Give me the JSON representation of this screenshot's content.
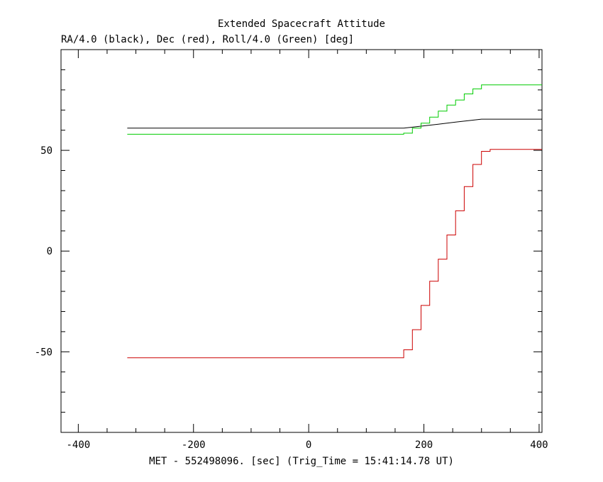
{
  "chart_data": {
    "type": "line",
    "title": "Extended Spacecraft Attitude",
    "subtitle": "RA/4.0 (black), Dec (red), Roll/4.0 (Green) [deg]",
    "xlabel": "MET - 552498096. [sec] (Trig_Time = 15:41:14.78 UT)",
    "ylabel": "",
    "xlim": [
      -430,
      405
    ],
    "ylim": [
      -90,
      100
    ],
    "x_tick_labels": [
      "-400",
      "-200",
      "0",
      "200",
      "400"
    ],
    "y_tick_labels": [
      "-50",
      "0",
      "50"
    ],
    "grid": false,
    "step": true,
    "series": [
      {
        "color": "#000000",
        "points": [
          [
            -315,
            61
          ],
          [
            165,
            61
          ],
          [
            180,
            61.5
          ],
          [
            195,
            62
          ],
          [
            210,
            62.5
          ],
          [
            225,
            63
          ],
          [
            240,
            63.5
          ],
          [
            255,
            64
          ],
          [
            270,
            64.5
          ],
          [
            285,
            65
          ],
          [
            300,
            65.5
          ],
          [
            405,
            65.5
          ]
        ]
      },
      {
        "color": "#cc0000",
        "points": [
          [
            -315,
            -53
          ],
          [
            165,
            -53
          ],
          [
            165,
            -49
          ],
          [
            180,
            -49
          ],
          [
            180,
            -39
          ],
          [
            195,
            -39
          ],
          [
            195,
            -27
          ],
          [
            210,
            -27
          ],
          [
            210,
            -15
          ],
          [
            225,
            -15
          ],
          [
            225,
            -4
          ],
          [
            240,
            -4
          ],
          [
            240,
            8
          ],
          [
            255,
            8
          ],
          [
            255,
            20
          ],
          [
            270,
            20
          ],
          [
            270,
            32
          ],
          [
            285,
            32
          ],
          [
            285,
            43
          ],
          [
            300,
            43
          ],
          [
            300,
            49.5
          ],
          [
            315,
            49.5
          ],
          [
            315,
            50.5
          ],
          [
            405,
            50.5
          ]
        ]
      },
      {
        "color": "#00cc00",
        "points": [
          [
            -315,
            58
          ],
          [
            165,
            58
          ],
          [
            165,
            58.5
          ],
          [
            180,
            58.5
          ],
          [
            180,
            61
          ],
          [
            195,
            61
          ],
          [
            195,
            63.5
          ],
          [
            210,
            63.5
          ],
          [
            210,
            66.5
          ],
          [
            225,
            66.5
          ],
          [
            225,
            69.5
          ],
          [
            240,
            69.5
          ],
          [
            240,
            72.5
          ],
          [
            255,
            72.5
          ],
          [
            255,
            75
          ],
          [
            270,
            75
          ],
          [
            270,
            78
          ],
          [
            285,
            78
          ],
          [
            285,
            80.5
          ],
          [
            300,
            80.5
          ],
          [
            300,
            82.5
          ],
          [
            405,
            82.5
          ]
        ]
      }
    ]
  }
}
